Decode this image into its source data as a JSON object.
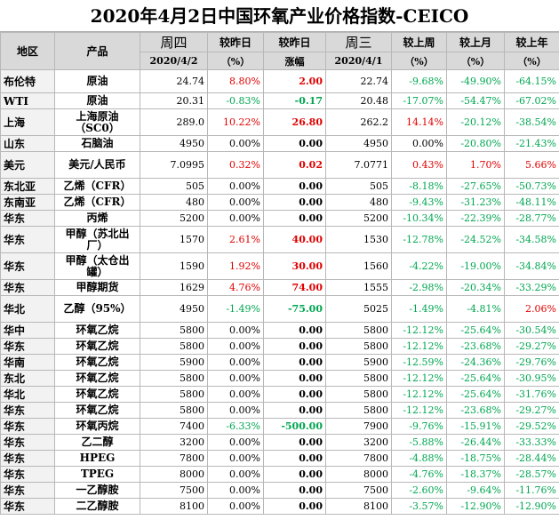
{
  "title": "2020年4月2日中国环氧产业价格指数-CEICO",
  "header": {
    "region": "地区",
    "product": "产品",
    "thu": "周四",
    "thu_date": "2020/4/2",
    "vs_prev": "较昨日",
    "vs_prev_unit": "（%）",
    "vs_prev2": "较昨日",
    "change": "涨幅",
    "wed": "周三",
    "wed_date": "2020/4/1",
    "vs_week": "较上周",
    "vs_week_unit": "（%）",
    "vs_month": "较上月",
    "vs_month_unit": "（%）",
    "vs_year": "较上年",
    "vs_year_unit": "（%）"
  },
  "colors": {
    "negative": "#00a651",
    "positive": "#e00000",
    "header_bg": "#d9d9d9"
  },
  "rows": [
    {
      "region": "布伦特",
      "product": "原油",
      "thu": "24.74",
      "d": "8.80%",
      "chg": "2.00",
      "wed": "22.74",
      "w": "-9.68%",
      "m": "-49.90%",
      "y": "-64.15%",
      "h": 26
    },
    {
      "region": "WTI",
      "product": "原油",
      "thu": "20.31",
      "d": "-0.83%",
      "chg": "-0.17",
      "wed": "20.48",
      "w": "-17.07%",
      "m": "-54.47%",
      "y": "-67.02%",
      "h": 18
    },
    {
      "region": "上海",
      "product": "上海原油（SC0）",
      "thu": "289.0",
      "d": "10.22%",
      "chg": "26.80",
      "wed": "262.2",
      "w": "14.14%",
      "m": "-20.12%",
      "y": "-38.54%",
      "h": 30
    },
    {
      "region": "山东",
      "product": "石脑油",
      "thu": "4950",
      "d": "0.00%",
      "chg": "0.00",
      "wed": "4950",
      "w": "0.00%",
      "m": "-20.80%",
      "y": "-21.43%",
      "h": 18
    },
    {
      "region": "美元",
      "product": "美元/人民币",
      "thu": "7.0995",
      "d": "0.32%",
      "chg": "0.02",
      "wed": "7.0771",
      "w": "0.43%",
      "m": "1.70%",
      "y": "5.66%",
      "h": 30
    },
    {
      "region": "东北亚",
      "product": "乙烯（CFR）",
      "thu": "505",
      "d": "0.00%",
      "chg": "0.00",
      "wed": "505",
      "w": "-8.18%",
      "m": "-27.65%",
      "y": "-50.73%",
      "h": 18
    },
    {
      "region": "东南亚",
      "product": "乙烯（CFR）",
      "thu": "480",
      "d": "0.00%",
      "chg": "0.00",
      "wed": "480",
      "w": "-9.43%",
      "m": "-31.23%",
      "y": "-48.11%",
      "h": 18
    },
    {
      "region": "华东",
      "product": "丙烯",
      "thu": "5200",
      "d": "0.00%",
      "chg": "0.00",
      "wed": "5200",
      "w": "-10.34%",
      "m": "-22.39%",
      "y": "-28.77%",
      "h": 18
    },
    {
      "region": "华东",
      "product": "甲醇（苏北出厂）",
      "thu": "1570",
      "d": "2.61%",
      "chg": "40.00",
      "wed": "1530",
      "w": "-12.78%",
      "m": "-24.52%",
      "y": "-34.58%",
      "h": 30
    },
    {
      "region": "华东",
      "product": "甲醇（太仓出罐）",
      "thu": "1590",
      "d": "1.92%",
      "chg": "30.00",
      "wed": "1560",
      "w": "-4.22%",
      "m": "-19.00%",
      "y": "-34.84%",
      "h": 30
    },
    {
      "region": "华东",
      "product": "甲醇期货",
      "thu": "1629",
      "d": "4.76%",
      "chg": "74.00",
      "wed": "1555",
      "w": "-2.98%",
      "m": "-20.34%",
      "y": "-33.29%",
      "h": 18
    },
    {
      "region": "华北",
      "product": "乙醇（95%）",
      "thu": "4950",
      "d": "-1.49%",
      "chg": "-75.00",
      "wed": "5025",
      "w": "-1.49%",
      "m": "-4.81%",
      "y": "2.06%",
      "h": 30
    },
    {
      "region": "华中",
      "product": "环氧乙烷",
      "thu": "5800",
      "d": "0.00%",
      "chg": "0.00",
      "wed": "5800",
      "w": "-12.12%",
      "m": "-25.64%",
      "y": "-30.54%",
      "h": 18
    },
    {
      "region": "华东",
      "product": "环氧乙烷",
      "thu": "5800",
      "d": "0.00%",
      "chg": "0.00",
      "wed": "5800",
      "w": "-12.12%",
      "m": "-23.68%",
      "y": "-29.27%",
      "h": 18
    },
    {
      "region": "华南",
      "product": "环氧乙烷",
      "thu": "5900",
      "d": "0.00%",
      "chg": "0.00",
      "wed": "5900",
      "w": "-12.59%",
      "m": "-24.36%",
      "y": "-29.76%",
      "h": 18
    },
    {
      "region": "东北",
      "product": "环氧乙烷",
      "thu": "5800",
      "d": "0.00%",
      "chg": "0.00",
      "wed": "5800",
      "w": "-12.12%",
      "m": "-25.64%",
      "y": "-30.95%",
      "h": 18
    },
    {
      "region": "华北",
      "product": "环氧乙烷",
      "thu": "5800",
      "d": "0.00%",
      "chg": "0.00",
      "wed": "5800",
      "w": "-12.12%",
      "m": "-25.64%",
      "y": "-31.76%",
      "h": 18
    },
    {
      "region": "华东",
      "product": "环氧乙烷",
      "thu": "5800",
      "d": "0.00%",
      "chg": "0.00",
      "wed": "5800",
      "w": "-12.12%",
      "m": "-23.68%",
      "y": "-29.27%",
      "h": 18
    },
    {
      "region": "华东",
      "product": "环氧丙烷",
      "thu": "7400",
      "d": "-6.33%",
      "chg": "-500.00",
      "wed": "7900",
      "w": "-9.76%",
      "m": "-15.91%",
      "y": "-29.52%",
      "h": 18
    },
    {
      "region": "华东",
      "product": "乙二醇",
      "thu": "3200",
      "d": "0.00%",
      "chg": "0.00",
      "wed": "3200",
      "w": "-5.88%",
      "m": "-26.44%",
      "y": "-33.33%",
      "h": 18
    },
    {
      "region": "华东",
      "product": "HPEG",
      "thu": "7800",
      "d": "0.00%",
      "chg": "0.00",
      "wed": "7800",
      "w": "-4.88%",
      "m": "-18.75%",
      "y": "-28.44%",
      "h": 18
    },
    {
      "region": "华东",
      "product": "TPEG",
      "thu": "8000",
      "d": "0.00%",
      "chg": "0.00",
      "wed": "8000",
      "w": "-4.76%",
      "m": "-18.37%",
      "y": "-28.57%",
      "h": 18
    },
    {
      "region": "华东",
      "product": "一乙醇胺",
      "thu": "7500",
      "d": "0.00%",
      "chg": "0.00",
      "wed": "7500",
      "w": "-2.60%",
      "m": "-9.64%",
      "y": "-11.76%",
      "h": 18
    },
    {
      "region": "华东",
      "product": "二乙醇胺",
      "thu": "8100",
      "d": "0.00%",
      "chg": "0.00",
      "wed": "8100",
      "w": "-3.57%",
      "m": "-12.90%",
      "y": "-12.90%",
      "h": 18
    }
  ]
}
